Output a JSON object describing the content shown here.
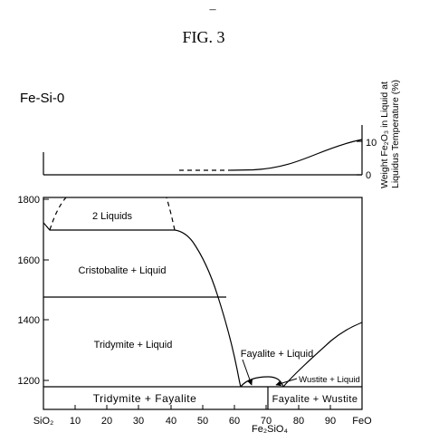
{
  "header": {
    "dash": "–",
    "figure_label": "FIG. 3"
  },
  "system_label": "Fe-Si-0",
  "top_panel": {
    "y_label_line1": "Weight Fe₂O₃ in Liquid at",
    "y_label_line2": "Liquidus Temperature (%)",
    "y_ticks": [
      "10",
      "0"
    ]
  },
  "main_panel": {
    "y_ticks": [
      "1800",
      "1600",
      "1400",
      "1200"
    ],
    "x_ticks": [
      "SiO₂",
      "10",
      "20",
      "30",
      "40",
      "50",
      "60",
      "70",
      "80",
      "90",
      "FeO"
    ],
    "x_mid_label": "Fe₂SiO₄",
    "regions": {
      "two_liquids": "2 Liquids",
      "cristobalite_liquid": "Cristobalite + Liquid",
      "tridymite_liquid": "Tridymite + Liquid",
      "fayalite_liquid": "Fayalite + Liquid",
      "wustite_liquid": "Wustite + Liquid",
      "tridymite_fayalite": "Tridymite + Fayalite",
      "fayalite_wustite": "Fayalite + Wustite"
    }
  }
}
